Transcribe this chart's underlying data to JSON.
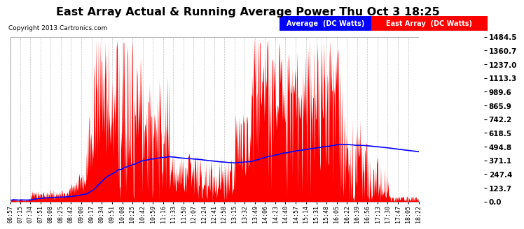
{
  "title": "East Array Actual & Running Average Power Thu Oct 3 18:25",
  "copyright": "Copyright 2013 Cartronics.com",
  "y_ticks": [
    0.0,
    123.7,
    247.4,
    371.1,
    494.8,
    618.5,
    742.2,
    865.9,
    989.6,
    1113.3,
    1237.0,
    1360.7,
    1484.5
  ],
  "ymax": 1484.5,
  "ymin": 0.0,
  "x_labels": [
    "06:57",
    "07:15",
    "07:34",
    "07:51",
    "08:08",
    "08:25",
    "08:42",
    "09:00",
    "09:17",
    "09:34",
    "09:51",
    "10:08",
    "10:25",
    "10:42",
    "10:59",
    "11:16",
    "11:33",
    "11:50",
    "12:07",
    "12:24",
    "12:41",
    "12:58",
    "13:15",
    "13:32",
    "13:49",
    "14:06",
    "14:23",
    "14:40",
    "14:57",
    "15:14",
    "15:31",
    "15:48",
    "16:05",
    "16:22",
    "16:39",
    "16:56",
    "17:13",
    "17:30",
    "17:47",
    "18:05",
    "18:22"
  ],
  "bg_color": "#ffffff",
  "plot_bg": "#ffffff",
  "grid_color": "#aaaaaa",
  "bar_color": "#ff0000",
  "avg_color": "#0000ff",
  "legend_avg_bg": "#0000ff",
  "legend_east_bg": "#ff0000",
  "legend_text_color": "#ffffff",
  "title_fontsize": 12,
  "copyright_fontsize": 6.5,
  "tick_fontsize": 7.5,
  "xtick_fontsize": 6
}
